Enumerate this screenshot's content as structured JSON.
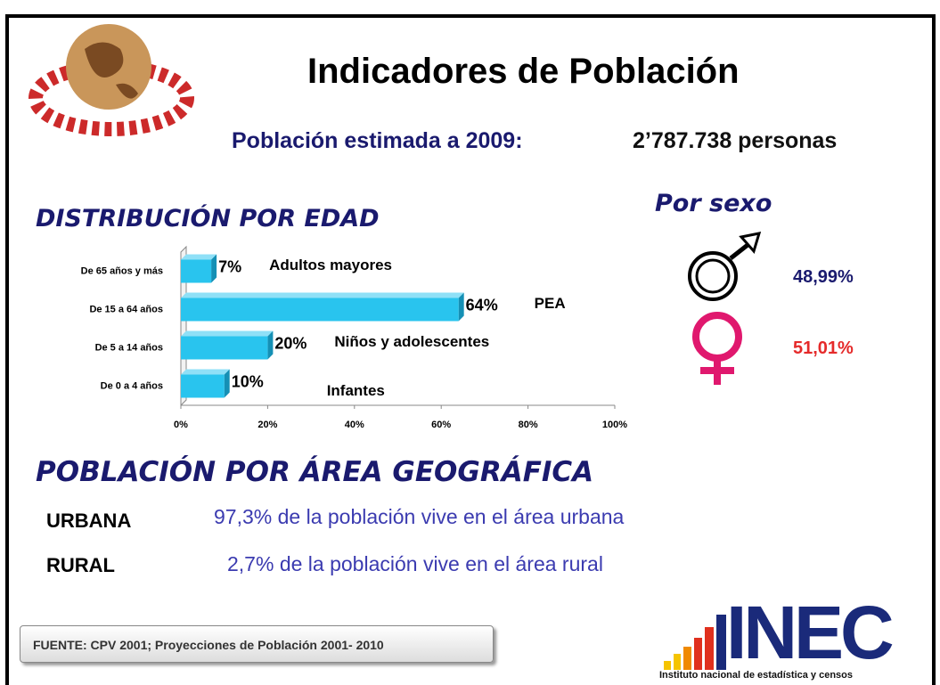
{
  "header": {
    "title": "Indicadores de Población",
    "population_label": "Población estimada a 2009:",
    "population_value": "2’787.738 personas"
  },
  "age_section": {
    "title": "DISTRIBUCIÓN POR EDAD"
  },
  "chart_data": {
    "type": "hbar",
    "categories": [
      "De 65 años y más",
      "De 15 a 64 años",
      "De 5 a 14 años",
      "De 0 a 4 años"
    ],
    "values": [
      7,
      64,
      20,
      10
    ],
    "value_labels": [
      "7%",
      "64%",
      "20%",
      "10%"
    ],
    "annotations": [
      "Adultos mayores",
      "PEA",
      "Niños y adolescentes",
      "Infantes"
    ],
    "color": "#29c4ee",
    "xlim": [
      0,
      100
    ],
    "xticks": [
      {
        "value": 0,
        "label": "0%"
      },
      {
        "value": 20,
        "label": "20%"
      },
      {
        "value": 40,
        "label": "40%"
      },
      {
        "value": 60,
        "label": "60%"
      },
      {
        "value": 80,
        "label": "80%"
      },
      {
        "value": 100,
        "label": "100%"
      }
    ]
  },
  "sex_section": {
    "title": "Por sexo",
    "male": "48,99%",
    "female": "51,01%"
  },
  "area_section": {
    "title": "POBLACIÓN POR ÁREA GEOGRÁFICA",
    "rows": [
      [
        "URBANA",
        "97,3% de la población vive en el área urbana"
      ],
      [
        "RURAL",
        "2,7% de la población vive en el área rural"
      ]
    ]
  },
  "footer": {
    "source": "FUENTE: CPV 2001; Proyecciones de Población 2001- 2010",
    "logo": "INEC",
    "logo_caption": "Instituto nacional de estadística y censos"
  }
}
